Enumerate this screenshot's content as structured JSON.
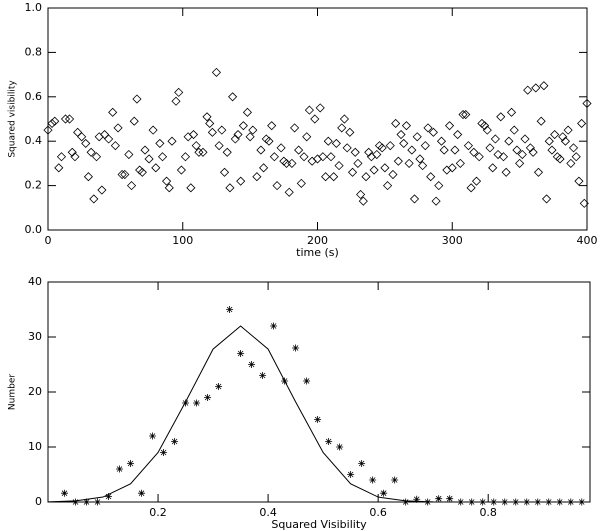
{
  "chart_data": [
    {
      "type": "scatter",
      "xlabel": "time (s)",
      "ylabel": "Squared visibility",
      "xlim": [
        0,
        400
      ],
      "ylim": [
        0,
        1
      ],
      "xticks": [
        0,
        100,
        200,
        300,
        400
      ],
      "yticks": [
        {
          "value": 0,
          "label": "0.0"
        },
        0.2,
        0.4,
        0.6,
        0.8,
        {
          "value": 1,
          "label": "1.0"
        }
      ],
      "series": [
        {
          "color": "#000000",
          "marker": "diamond",
          "x": [
            0,
            3,
            5,
            8,
            10,
            13,
            16,
            18,
            20,
            22,
            25,
            28,
            30,
            32,
            34,
            36,
            38,
            40,
            42,
            45,
            48,
            50,
            52,
            55,
            57,
            60,
            62,
            64,
            66,
            68,
            70,
            72,
            75,
            78,
            80,
            83,
            85,
            88,
            90,
            92,
            95,
            97,
            99,
            102,
            104,
            106,
            108,
            110,
            112,
            115,
            118,
            120,
            122,
            125,
            127,
            129,
            131,
            133,
            135,
            137,
            139,
            141,
            143,
            145,
            148,
            150,
            152,
            155,
            158,
            160,
            162,
            164,
            166,
            168,
            170,
            173,
            175,
            177,
            179,
            181,
            183,
            186,
            188,
            190,
            192,
            194,
            196,
            198,
            200,
            202,
            204,
            206,
            208,
            210,
            212,
            214,
            216,
            218,
            220,
            222,
            224,
            226,
            228,
            230,
            232,
            234,
            236,
            238,
            240,
            242,
            244,
            246,
            248,
            250,
            252,
            254,
            256,
            258,
            260,
            262,
            264,
            266,
            268,
            270,
            272,
            274,
            276,
            278,
            280,
            282,
            284,
            286,
            288,
            290,
            292,
            294,
            296,
            298,
            300,
            302,
            304,
            306,
            308,
            310,
            312,
            314,
            316,
            318,
            320,
            322,
            324,
            326,
            328,
            330,
            332,
            334,
            336,
            338,
            340,
            342,
            344,
            346,
            348,
            350,
            352,
            354,
            356,
            358,
            360,
            362,
            364,
            366,
            368,
            370,
            372,
            374,
            376,
            378,
            380,
            382,
            384,
            386,
            388,
            390,
            392,
            394,
            396,
            398,
            400
          ],
          "values": [
            0.45,
            0.48,
            0.49,
            0.28,
            0.33,
            0.5,
            0.5,
            0.35,
            0.33,
            0.44,
            0.42,
            0.39,
            0.24,
            0.35,
            0.14,
            0.33,
            0.42,
            0.18,
            0.43,
            0.41,
            0.53,
            0.38,
            0.46,
            0.25,
            0.25,
            0.34,
            0.2,
            0.49,
            0.59,
            0.27,
            0.26,
            0.36,
            0.32,
            0.45,
            0.28,
            0.39,
            0.33,
            0.22,
            0.19,
            0.4,
            0.58,
            0.62,
            0.27,
            0.33,
            0.42,
            0.19,
            0.43,
            0.38,
            0.35,
            0.35,
            0.51,
            0.48,
            0.44,
            0.71,
            0.38,
            0.45,
            0.26,
            0.35,
            0.19,
            0.6,
            0.41,
            0.43,
            0.22,
            0.47,
            0.53,
            0.42,
            0.45,
            0.24,
            0.36,
            0.28,
            0.41,
            0.4,
            0.47,
            0.33,
            0.2,
            0.37,
            0.31,
            0.3,
            0.17,
            0.3,
            0.46,
            0.36,
            0.21,
            0.33,
            0.42,
            0.54,
            0.31,
            0.5,
            0.32,
            0.55,
            0.33,
            0.24,
            0.4,
            0.33,
            0.24,
            0.39,
            0.29,
            0.46,
            0.5,
            0.37,
            0.44,
            0.26,
            0.35,
            0.3,
            0.16,
            0.13,
            0.24,
            0.35,
            0.33,
            0.27,
            0.34,
            0.38,
            0.37,
            0.28,
            0.2,
            0.38,
            0.25,
            0.48,
            0.31,
            0.43,
            0.39,
            0.47,
            0.3,
            0.36,
            0.14,
            0.42,
            0.32,
            0.29,
            0.38,
            0.46,
            0.24,
            0.44,
            0.13,
            0.2,
            0.4,
            0.36,
            0.27,
            0.47,
            0.28,
            0.36,
            0.43,
            0.3,
            0.52,
            0.52,
            0.38,
            0.19,
            0.35,
            0.22,
            0.33,
            0.48,
            0.47,
            0.45,
            0.37,
            0.28,
            0.41,
            0.34,
            0.51,
            0.33,
            0.26,
            0.4,
            0.53,
            0.45,
            0.36,
            0.3,
            0.34,
            0.41,
            0.63,
            0.37,
            0.35,
            0.64,
            0.26,
            0.49,
            0.65,
            0.14,
            0.4,
            0.36,
            0.43,
            0.33,
            0.32,
            0.42,
            0.4,
            0.45,
            0.3,
            0.37,
            0.33,
            0.22,
            0.48,
            0.12,
            0.57
          ]
        }
      ]
    },
    {
      "type": "scatter",
      "xlabel": "Squared Visibility",
      "ylabel": "Number",
      "xlim": [
        0,
        0.985
      ],
      "ylim": [
        0,
        40
      ],
      "xticks": [
        0.2,
        0.4,
        0.6,
        0.8
      ],
      "yticks": [
        0,
        10,
        20,
        30,
        40
      ],
      "series": [
        {
          "color": "#000000",
          "marker": "asterisk",
          "x": [
            0.03,
            0.05,
            0.07,
            0.09,
            0.11,
            0.13,
            0.15,
            0.17,
            0.19,
            0.21,
            0.23,
            0.25,
            0.27,
            0.29,
            0.31,
            0.33,
            0.35,
            0.37,
            0.39,
            0.41,
            0.43,
            0.45,
            0.47,
            0.49,
            0.51,
            0.53,
            0.55,
            0.57,
            0.59,
            0.61,
            0.63,
            0.65,
            0.67,
            0.69,
            0.71,
            0.73,
            0.75,
            0.77,
            0.79,
            0.81,
            0.83,
            0.85,
            0.87,
            0.89,
            0.91,
            0.93,
            0.95,
            0.97
          ],
          "values": [
            1.6,
            0,
            0,
            0,
            1,
            6,
            7,
            1.6,
            12,
            9,
            11,
            18,
            18,
            19,
            21,
            35,
            27,
            25,
            23,
            32,
            22,
            28,
            22,
            15,
            11,
            10,
            5,
            7,
            4,
            1.6,
            4,
            0,
            0.5,
            0,
            0.6,
            0.6,
            0,
            0,
            0,
            0,
            0,
            0,
            0,
            0,
            0,
            0,
            0,
            0
          ]
        },
        {
          "color": "#000000",
          "marker": "line",
          "x": [
            0,
            0.05,
            0.1,
            0.15,
            0.2,
            0.25,
            0.3,
            0.35,
            0.4,
            0.45,
            0.5,
            0.55,
            0.6,
            0.65,
            0.7,
            0.75,
            0.8,
            0.85,
            0.9,
            0.95
          ],
          "values": [
            0.03,
            0.2,
            0.9,
            3.3,
            9,
            18.2,
            27.8,
            32,
            27.8,
            18.2,
            9,
            3.3,
            0.9,
            0.2,
            0.03,
            0,
            0,
            0,
            0,
            0
          ]
        }
      ]
    }
  ]
}
